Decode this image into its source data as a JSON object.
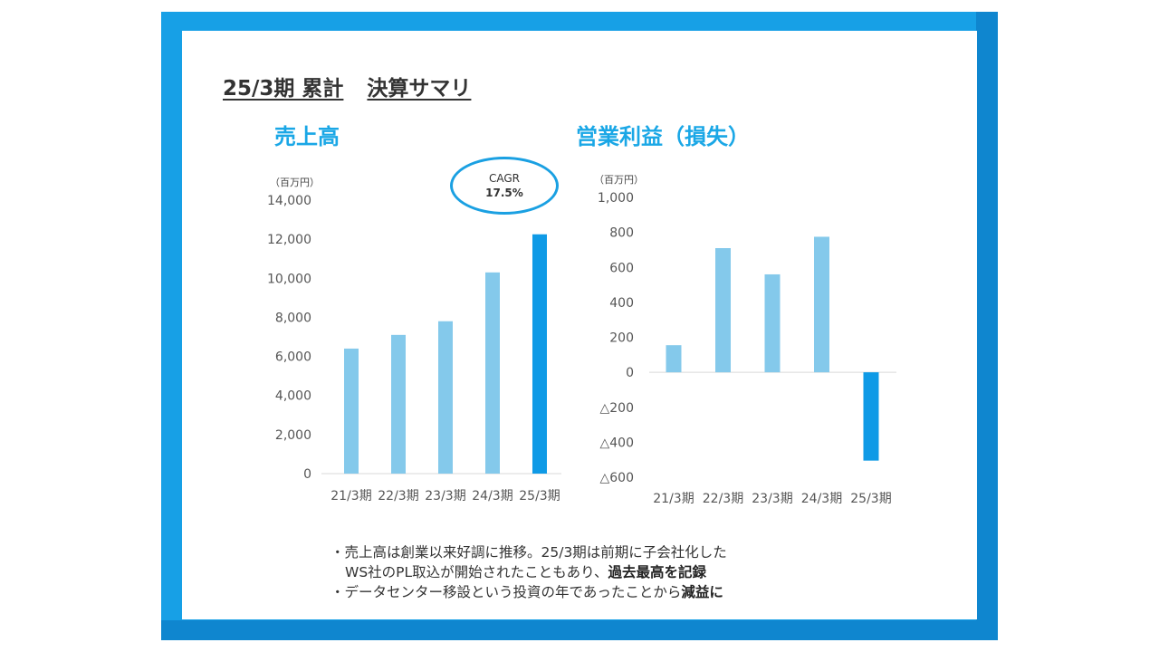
{
  "slide": {
    "title_part1": "25/3期 累計",
    "title_part2": "決算サマリ",
    "accent_color": "#1aa7e6",
    "frame_color": "#17a0e6"
  },
  "chart_data": [
    {
      "type": "bar",
      "title": "売上高",
      "unit_label": "（百万円）",
      "categories": [
        "21/3期",
        "22/3期",
        "23/3期",
        "24/3期",
        "25/3期"
      ],
      "values": [
        6400,
        7100,
        7800,
        10300,
        12250
      ],
      "ylim": [
        0,
        14000
      ],
      "yticks": [
        0,
        2000,
        4000,
        6000,
        8000,
        10000,
        12000,
        14000
      ],
      "ytick_labels": [
        "0",
        "2,000",
        "4,000",
        "6,000",
        "8,000",
        "10,000",
        "12,000",
        "14,000"
      ],
      "bar_color": "#84c9eb",
      "highlight_color": "#0f9ae6",
      "highlight_index": 4,
      "grid": false,
      "annotation": {
        "label": "CAGR",
        "value": "17.5%"
      }
    },
    {
      "type": "bar",
      "title": "営業利益（損失）",
      "unit_label": "（百万円）",
      "categories": [
        "21/3期",
        "22/3期",
        "23/3期",
        "24/3期",
        "25/3期"
      ],
      "values": [
        155,
        710,
        560,
        775,
        -505
      ],
      "ylim": [
        -600,
        1000
      ],
      "yticks": [
        -600,
        -400,
        -200,
        0,
        200,
        400,
        600,
        800,
        1000
      ],
      "ytick_labels": [
        "△600",
        "△400",
        "△200",
        "0",
        "200",
        "400",
        "600",
        "800",
        "1,000"
      ],
      "bar_color": "#84c9eb",
      "highlight_color": "#0f9ae6",
      "highlight_index": 4,
      "grid": false
    }
  ],
  "notes": {
    "line1": "・売上高は創業以来好調に推移。25/3期は前期に子会社化した",
    "line2_plain": "WS社のPL取込が開始されたこともあり、",
    "line2_bold": "過去最高を記録",
    "line3_plain": "・データセンター移設という投資の年であったことから",
    "line3_bold": "減益に"
  }
}
